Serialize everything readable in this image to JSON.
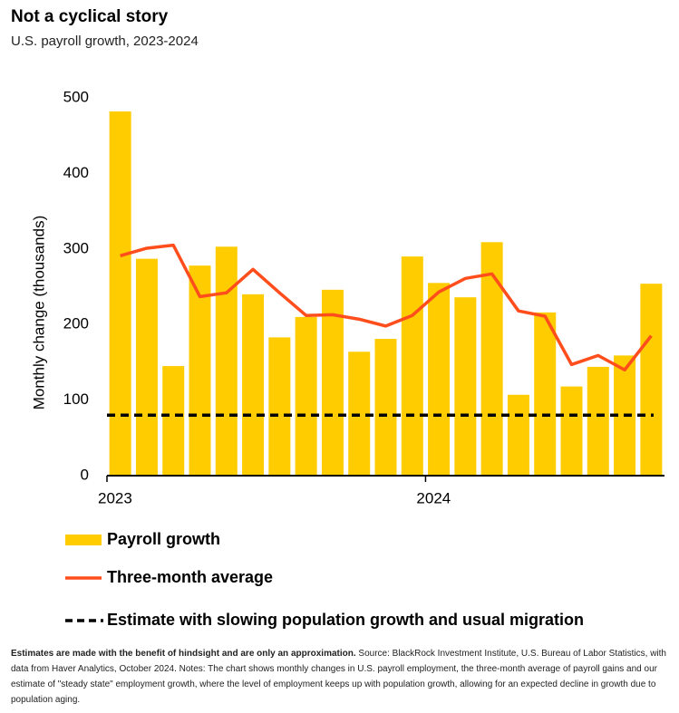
{
  "chart_data": {
    "type": "bar",
    "title": "Not a cyclical story",
    "subtitle": "U.S. payroll growth, 2023-2024",
    "y_label": "Monthly change (thousands)",
    "categories": [
      "2023",
      null,
      null,
      null,
      null,
      null,
      null,
      null,
      null,
      null,
      null,
      null,
      "2024",
      null,
      null,
      null,
      null,
      null,
      null,
      null,
      null
    ],
    "series": [
      {
        "name": "Payroll growth",
        "color": "#ffcc00",
        "type": "bar",
        "values": [
          482,
          287,
          145,
          278,
          303,
          240,
          183,
          210,
          246,
          164,
          181,
          290,
          255,
          236,
          309,
          107,
          216,
          118,
          144,
          159,
          254
        ]
      },
      {
        "name": "Three-month average",
        "color": "#ff4d1c",
        "type": "line",
        "values": [
          291,
          301,
          305,
          237,
          242,
          273,
          242,
          212,
          213,
          207,
          198,
          212,
          243,
          261,
          267,
          218,
          211,
          147,
          159,
          140,
          185
        ]
      }
    ],
    "reference_line": {
      "name": "Estimate with slowing population growth and usual migration",
      "value": 80,
      "color": "#000000"
    },
    "ylim": [
      0,
      500
    ],
    "yticks": [
      0,
      100,
      200,
      300,
      400,
      500
    ],
    "grid": false,
    "notes": {
      "bold": "Estimates are made with the benefit of hindsight and are only an approximation.",
      "text": " Source: BlackRock Investment Institute, U.S. Bureau of Labor Statistics, with data from Haver Analytics, October 2024. Notes: The chart shows monthly changes in U.S. payroll employment, the three-month average of payroll gains and our estimate of \"steady state\" employment growth, where the level of employment keeps up with population growth, allowing for an expected decline in growth due to population aging."
    }
  }
}
